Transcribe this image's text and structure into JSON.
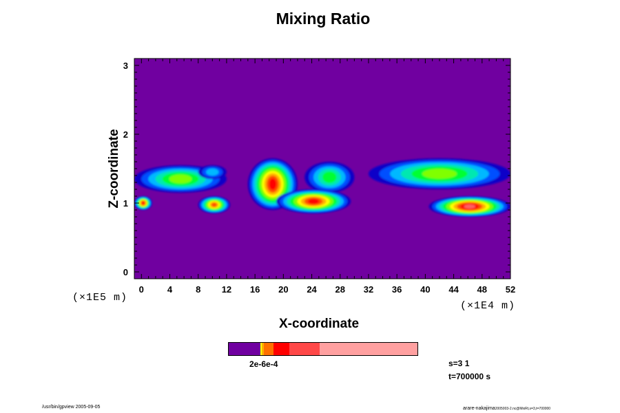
{
  "chart_data": {
    "type": "heatmap",
    "title": "Mixing Ratio",
    "xlabel": "X-coordinate",
    "ylabel": "Z-coordinate",
    "x_scale_note": "(×1E4 m)",
    "y_scale_note": "(×1E5 m)",
    "xlim": [
      -1,
      52
    ],
    "ylim": [
      -0.1,
      3.1
    ],
    "x_ticks": [
      0,
      4,
      8,
      12,
      16,
      20,
      24,
      28,
      32,
      36,
      40,
      44,
      48,
      52
    ],
    "y_ticks": [
      0,
      1,
      2,
      3
    ],
    "background_color": "#7000a0",
    "color_levels": [
      "#7000a0",
      "#1000c8",
      "#0050ff",
      "#00b8ff",
      "#00e8b0",
      "#00ff30",
      "#80ff00",
      "#ffff00",
      "#ffb000",
      "#ff5000",
      "#ff0000",
      "#ff6060",
      "#ffa0a0"
    ],
    "cloud_bands": [
      {
        "x": [
          -1,
          12
        ],
        "z": [
          1.15,
          1.55
        ],
        "peak_level": 6
      },
      {
        "x": [
          8,
          12
        ],
        "z": [
          1.35,
          1.55
        ],
        "peak_level": 3
      },
      {
        "x": [
          15,
          22
        ],
        "z": [
          0.9,
          1.65
        ],
        "peak_level": 10
      },
      {
        "x": [
          23,
          30
        ],
        "z": [
          1.15,
          1.6
        ],
        "peak_level": 5
      },
      {
        "x": [
          32,
          52
        ],
        "z": [
          1.2,
          1.65
        ],
        "peak_level": 6
      },
      {
        "x": [
          -1,
          1.5
        ],
        "z": [
          0.9,
          1.1
        ],
        "peak_level": 10
      },
      {
        "x": [
          8,
          12.5
        ],
        "z": [
          0.85,
          1.1
        ],
        "peak_level": 9
      },
      {
        "x": [
          19,
          29.5
        ],
        "z": [
          0.85,
          1.2
        ],
        "peak_level": 10
      },
      {
        "x": [
          40.5,
          52
        ],
        "z": [
          0.8,
          1.1
        ],
        "peak_level": 11
      }
    ],
    "colorbar": {
      "segments": [
        {
          "color": "#7000a0",
          "fraction": 0.167
        },
        {
          "color": "#ffff00",
          "fraction": 0.008
        },
        {
          "color": "#ffb000",
          "fraction": 0.012
        },
        {
          "color": "#ff7000",
          "fraction": 0.05
        },
        {
          "color": "#ff0000",
          "fraction": 0.083
        },
        {
          "color": "#ff4848",
          "fraction": 0.163
        },
        {
          "color": "#ffa0a0",
          "fraction": 0.517
        }
      ],
      "label": "2e-6e-4"
    }
  },
  "annotations": {
    "step": "s=3 1",
    "time": "t=700000 s"
  },
  "footer": {
    "left": "/usr/bin/gpview 2005-09-05",
    "right_main": "arare-nakajima",
    "right_small": "2005003-2.nc@MixRt,s=3,t=700000"
  }
}
